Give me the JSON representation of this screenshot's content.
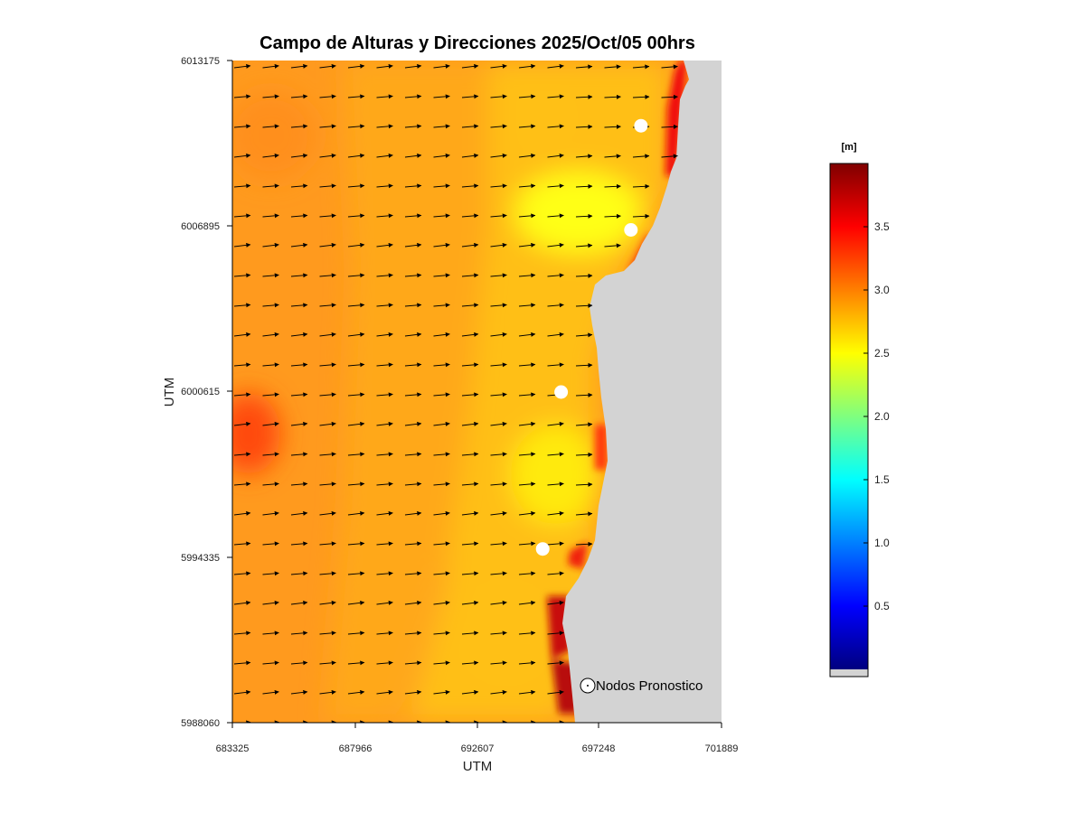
{
  "chart_data": {
    "type": "heatmap",
    "title": "Campo de Alturas y Direcciones 2025/Oct/05  00hrs",
    "xlabel": "UTM",
    "ylabel": "UTM",
    "xlim": [
      683325,
      701889
    ],
    "ylim": [
      5988060,
      6013175
    ],
    "x_ticks": [
      "683325",
      "687966",
      "692607",
      "697248",
      "701889"
    ],
    "y_ticks": [
      "5988060",
      "5994335",
      "6000615",
      "6006895",
      "6013175"
    ],
    "colorbar": {
      "unit": "[m]",
      "range": [
        0,
        4.0
      ],
      "ticks": [
        "0.5",
        "1.0",
        "1.5",
        "2.0",
        "2.5",
        "3.0",
        "3.5"
      ],
      "colormap": "jet",
      "land_color": "#d3d3d3"
    },
    "legend": {
      "label": "Nodos Pronostico",
      "position": "bottom-right"
    },
    "forecast_nodes": [
      {
        "x": 698830,
        "y": 6010700
      },
      {
        "x": 698450,
        "y": 6006750
      },
      {
        "x": 695800,
        "y": 6000600
      },
      {
        "x": 695100,
        "y": 5994650
      }
    ],
    "wave_height_field_m": {
      "offshore": 3.2,
      "mid": 2.95,
      "nearshore": 2.6,
      "min_pockets": 2.3,
      "coastal_max": 3.8
    },
    "wave_direction": "approx. from west, propagating eastward toward the coast"
  }
}
